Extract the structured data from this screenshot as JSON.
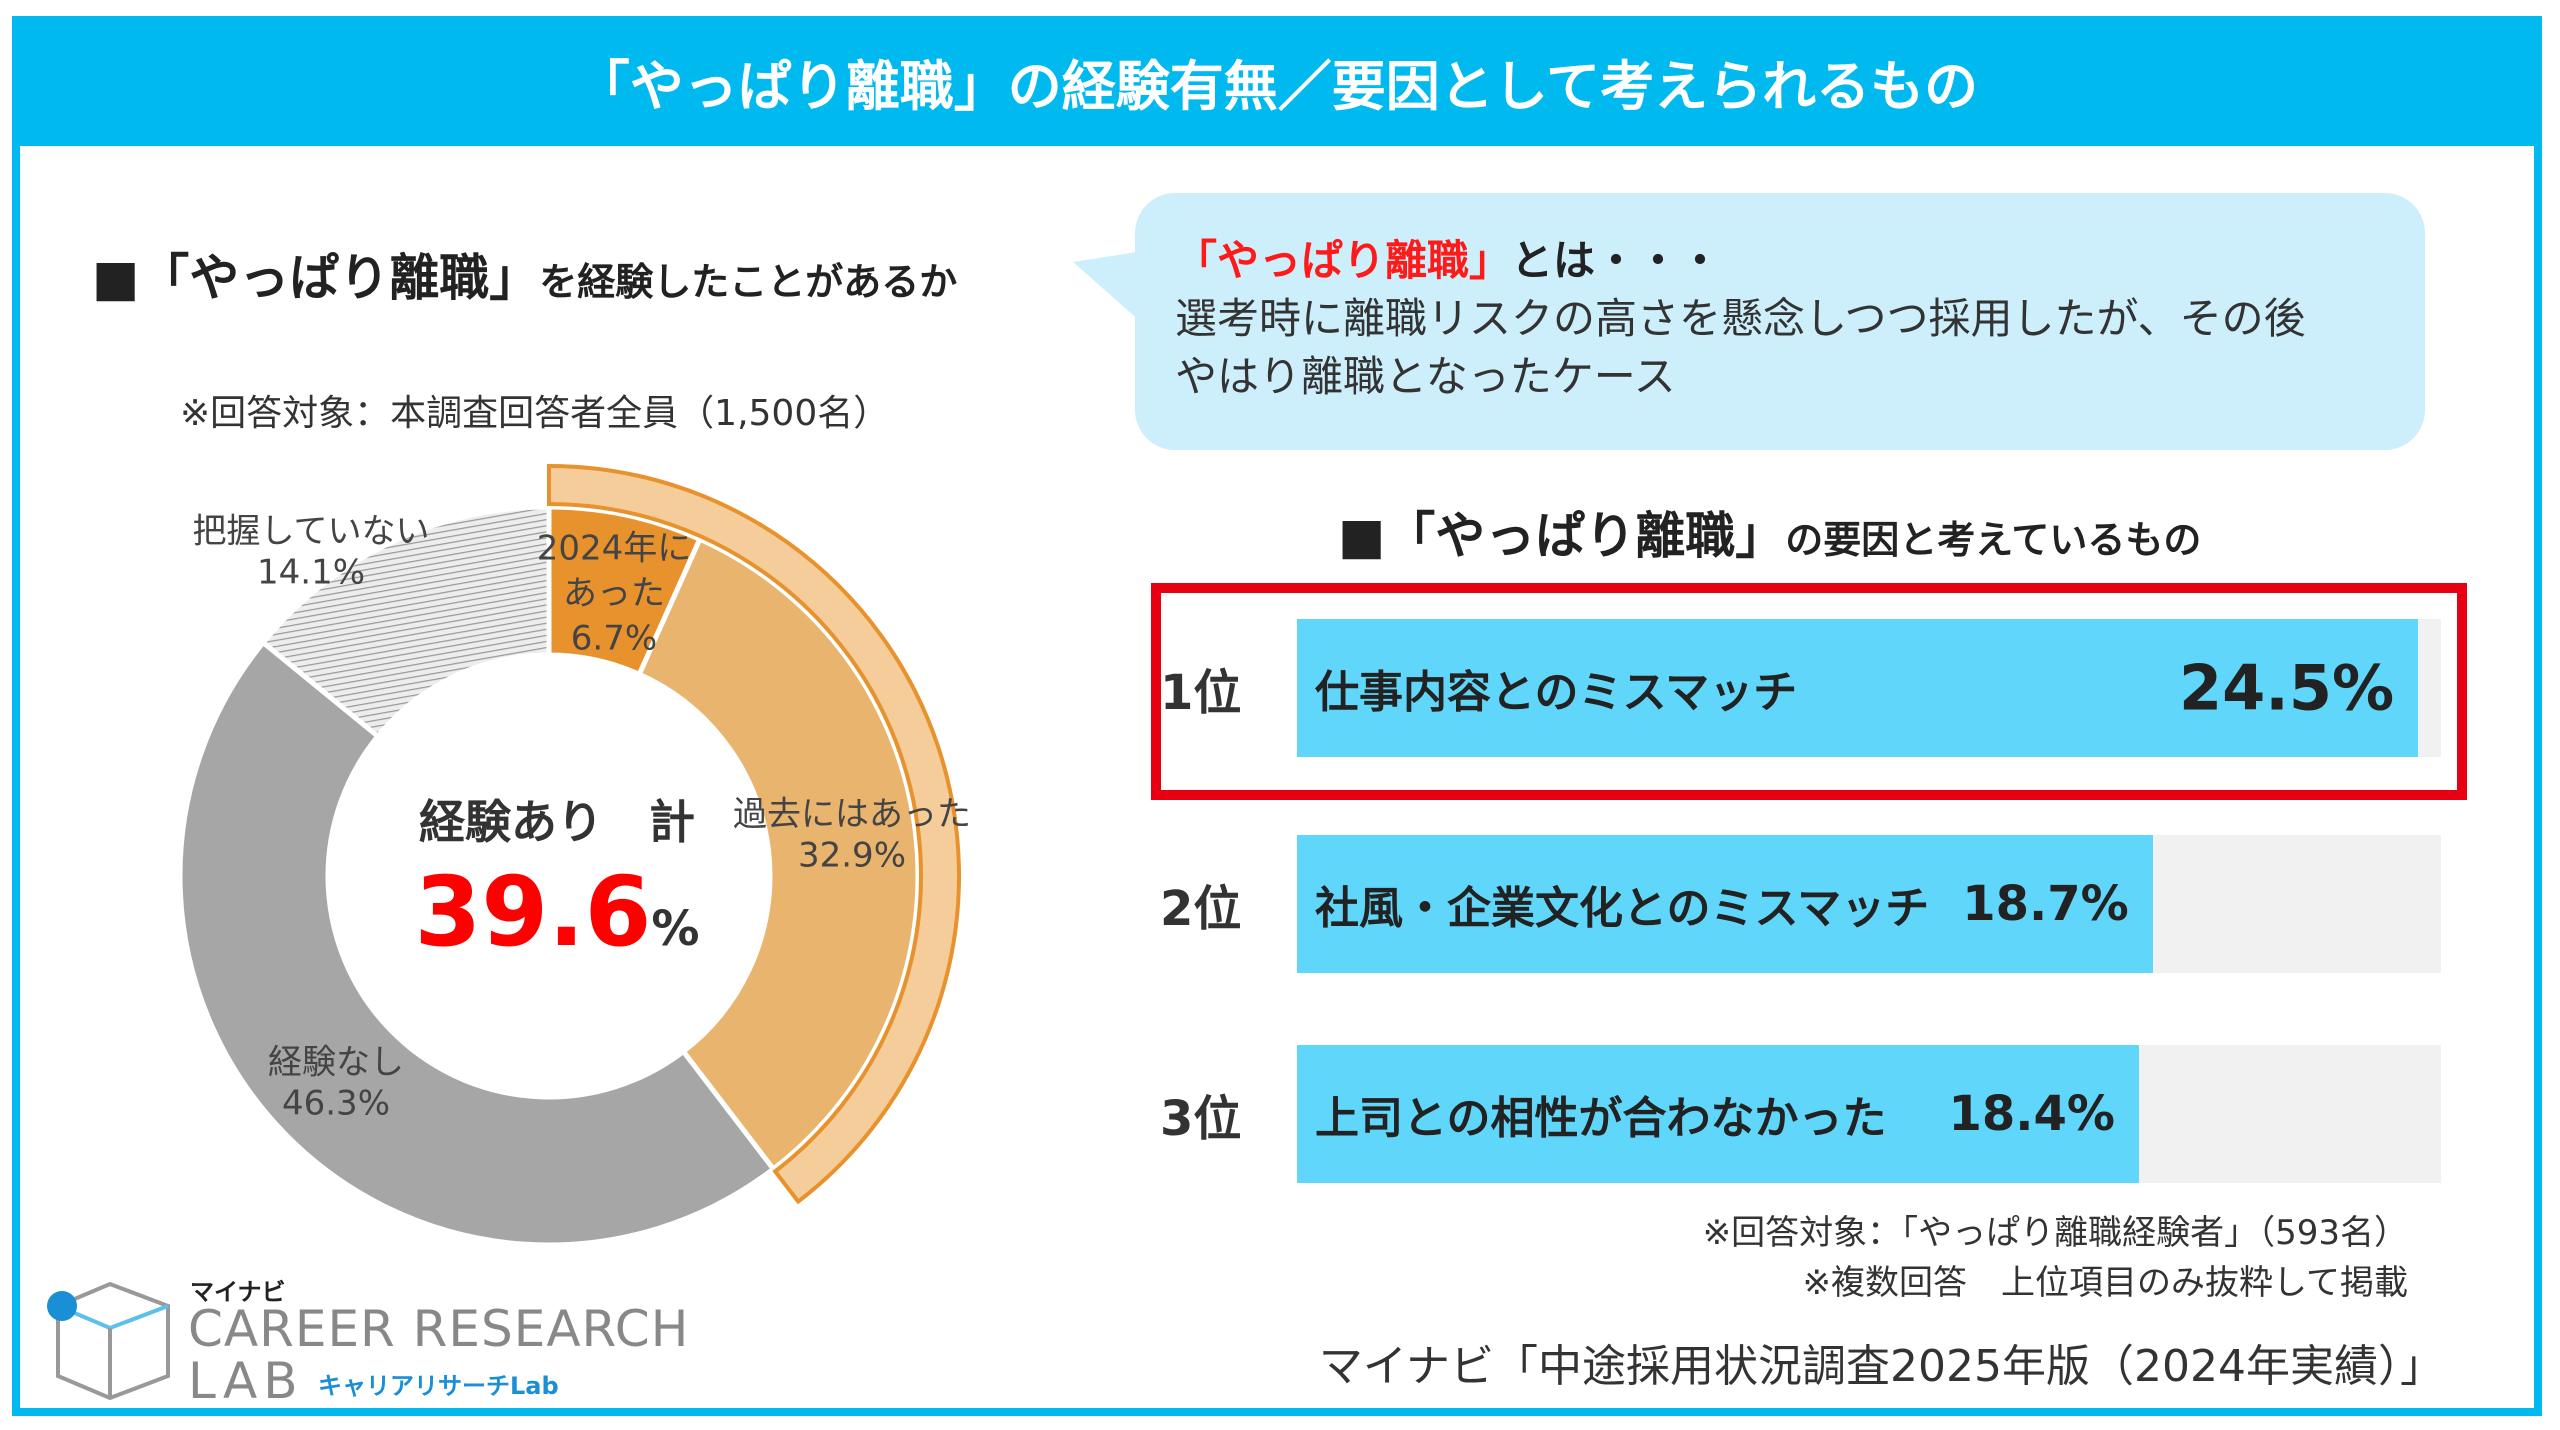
{
  "title": "「やっぱり離職」の経験有無／要因として考えられるもの",
  "left": {
    "heading_big": "■「やっぱり離職」",
    "heading_small": "を経験したことがあるか",
    "note": "※回答対象：本調査回答者全員（1,500名）"
  },
  "bubble": {
    "term": "「やっぱり離職」",
    "suffix": "とは・・・",
    "line1": "選考時に離職リスクの高さを懸念しつつ採用したが、その後",
    "line2": "やはり離職となったケース"
  },
  "right": {
    "heading_big": "■「やっぱり離職」",
    "heading_small": "の要因と考えているもの",
    "note1": "※回答対象：「やっぱり離職経験者」（593名）",
    "note2": "※複数回答　上位項目のみ抜粋して掲載"
  },
  "source": "マイナビ「中途採用状況調査2025年版（2024年実績）」",
  "logo": {
    "maker": "マイナビ",
    "line1": "CAREER RESEARCH",
    "line2": "LAB",
    "sub": "キャリアリサーチLab"
  },
  "colors": {
    "frame": "#00b9ef",
    "orange_dark": "#e8922e",
    "orange_light": "#e9b46e",
    "orange_outer": "#f5cd9a",
    "grey": "#a6a6a6",
    "bar": "#5fd6fa",
    "highlight_box": "#e60012",
    "accent_red": "#ff0000"
  },
  "chart_data": [
    {
      "type": "pie",
      "variant": "donut",
      "center_label": "経験あり　計",
      "center_value": "39.6",
      "center_unit": "%",
      "slices": [
        {
          "label_line1": "2024年に",
          "label_line2": "あった",
          "value": 6.7,
          "display": "6.7%",
          "color": "#e8922e"
        },
        {
          "label_line1": "過去にはあった",
          "value": 32.9,
          "display": "32.9%",
          "color": "#e9b46e"
        },
        {
          "label_line1": "経験なし",
          "value": 46.3,
          "display": "46.3%",
          "color": "#a6a6a6"
        },
        {
          "label_line1": "把握していない",
          "value": 14.1,
          "display": "14.1%",
          "color": "hatched-grey"
        }
      ],
      "outer_arc": {
        "value": 39.6,
        "color": "#f5cd9a"
      }
    },
    {
      "type": "bar",
      "orientation": "horizontal",
      "categories": [
        "仕事内容とのミスマッチ",
        "社風・企業文化とのミスマッチ",
        "上司との相性が合わなかった"
      ],
      "ranks": [
        "1位",
        "2位",
        "3位"
      ],
      "values": [
        24.5,
        18.7,
        18.4
      ],
      "value_labels": [
        "24.5%",
        "18.7%",
        "18.4%"
      ],
      "xlim": [
        0,
        25
      ],
      "highlighted": "1位"
    }
  ]
}
